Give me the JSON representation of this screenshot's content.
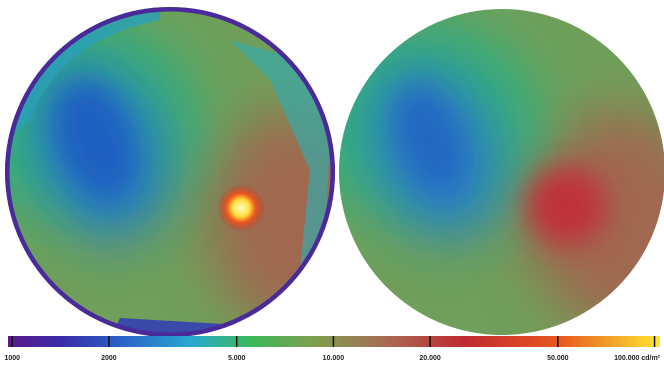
{
  "colorbar": {
    "scale": "log",
    "lim": [
      970,
      104000
    ],
    "ticks": [
      {
        "value": 1000,
        "label": "1000"
      },
      {
        "value": 2000,
        "label": "2000"
      },
      {
        "value": 5000,
        "label": "5.000"
      },
      {
        "value": 10000,
        "label": "10.000"
      },
      {
        "value": 20000,
        "label": "20.000"
      },
      {
        "value": 50000,
        "label": "50.000"
      },
      {
        "value": 100000,
        "label": "100.000 cd/m²"
      }
    ]
  }
}
